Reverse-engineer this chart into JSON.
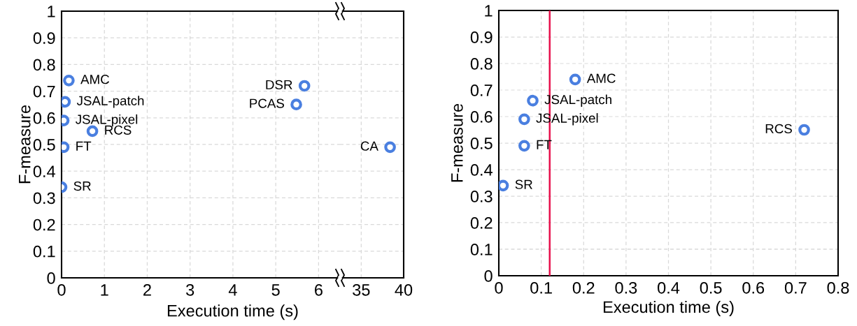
{
  "chart_data": [
    {
      "type": "scatter",
      "ylabel": "F-measure",
      "xlim": [
        0,
        6.5
      ],
      "xticks": [
        0,
        1,
        2,
        3,
        4,
        5,
        6
      ],
      "ylim": [
        0,
        1
      ],
      "yticks": [
        0,
        0.1,
        0.2,
        0.3,
        0.4,
        0.5,
        0.6,
        0.7,
        0.8,
        0.9,
        1
      ],
      "grid": true,
      "marker": "circle",
      "series": [
        {
          "color": "#4a7fe0",
          "x": [
            0,
            0.05,
            0.05,
            0.08,
            0.17,
            0.72,
            5.48,
            5.67
          ],
          "values": [
            0.34,
            0.49,
            0.59,
            0.66,
            0.74,
            0.55,
            0.65,
            0.72
          ]
        }
      ],
      "annotations": [
        {
          "text": "SR",
          "x": 0,
          "y": 0.34
        },
        {
          "text": "FT",
          "x": 0.05,
          "y": 0.49
        },
        {
          "text": "JSAL-pixel",
          "x": 0.05,
          "y": 0.59
        },
        {
          "text": "JSAL-patch",
          "x": 0.08,
          "y": 0.66
        },
        {
          "text": "AMC",
          "x": 0.17,
          "y": 0.74
        },
        {
          "text": "RCS",
          "x": 0.72,
          "y": 0.55
        },
        {
          "text": "PCAS",
          "x": 5.48,
          "y": 0.65
        },
        {
          "text": "DSR",
          "x": 5.67,
          "y": 0.72
        }
      ]
    },
    {
      "type": "scatter",
      "xlabel": "Execution time (s)",
      "xlim": [
        32.5,
        40
      ],
      "xticks": [
        35,
        40
      ],
      "ylim": [
        0,
        1
      ],
      "yticks": [
        0,
        0.1,
        0.2,
        0.3,
        0.4,
        0.5,
        0.6,
        0.7,
        0.8,
        0.9,
        1
      ],
      "grid": true,
      "marker": "circle",
      "tick_labels": "x",
      "series": [
        {
          "color": "#4a7fe0",
          "x": [
            38.4
          ],
          "values": [
            0.49
          ]
        }
      ],
      "annotations": [
        {
          "text": "CA",
          "x": 38.4,
          "y": 0.49
        }
      ]
    },
    {
      "type": "scatter",
      "xlabel": "Execution time (s)",
      "ylabel": "F-measure",
      "xlim": [
        0,
        0.8
      ],
      "xticks": [
        0,
        0.1,
        0.2,
        0.3,
        0.4,
        0.5,
        0.6,
        0.7,
        0.8
      ],
      "ylim": [
        0,
        1
      ],
      "yticks": [
        0,
        0.1,
        0.2,
        0.3,
        0.4,
        0.5,
        0.6,
        0.7,
        0.8,
        0.9,
        1
      ],
      "grid": true,
      "marker": "circle",
      "series": [
        {
          "color": "#4a7fe0",
          "x": [
            0.01,
            0.06,
            0.06,
            0.08,
            0.18,
            0.72
          ],
          "values": [
            0.34,
            0.49,
            0.59,
            0.66,
            0.74,
            0.55
          ]
        }
      ],
      "ref_lines": [
        {
          "axis": "x",
          "value": 0.12,
          "color": "#e8104c"
        }
      ],
      "annotations": [
        {
          "text": "SR",
          "x": 0.01,
          "y": 0.34
        },
        {
          "text": "FT",
          "x": 0.06,
          "y": 0.49
        },
        {
          "text": "JSAL-pixel",
          "x": 0.06,
          "y": 0.59
        },
        {
          "text": "JSAL-patch",
          "x": 0.08,
          "y": 0.66
        },
        {
          "text": "AMC",
          "x": 0.18,
          "y": 0.74
        },
        {
          "text": "RCS",
          "x": 0.72,
          "y": 0.55
        }
      ]
    }
  ]
}
